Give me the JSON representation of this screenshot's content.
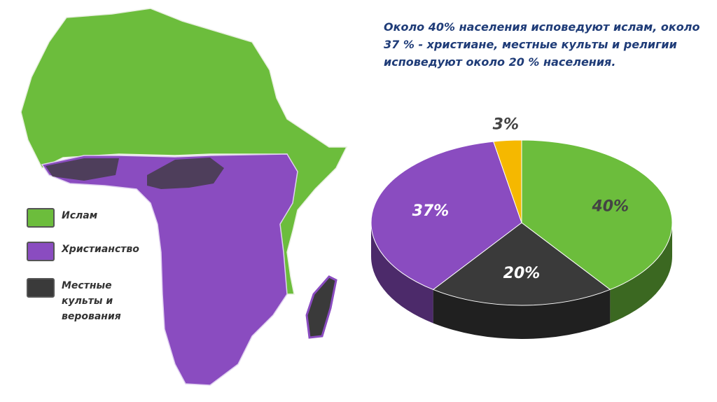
{
  "chart_data": {
    "type": "pie",
    "title": "Около 40% населения исповедуют ислам, около 37 % - христиане, местные культы и религии исповедуют около 20 % населения.",
    "values": [
      40,
      20,
      37,
      3
    ],
    "value_labels": [
      "40%",
      "20%",
      "37%",
      "3%"
    ],
    "colors": [
      "#6cbd3c",
      "#3a3a3a",
      "#8a4cc0",
      "#f5b800"
    ]
  },
  "map": {
    "legend": [
      {
        "label": "Ислам",
        "color": "#6cbd3c"
      },
      {
        "label": "Христианство",
        "color": "#8a4cc0"
      },
      {
        "label": "Местные культы и верования",
        "color": "#3a3a3a"
      }
    ]
  }
}
